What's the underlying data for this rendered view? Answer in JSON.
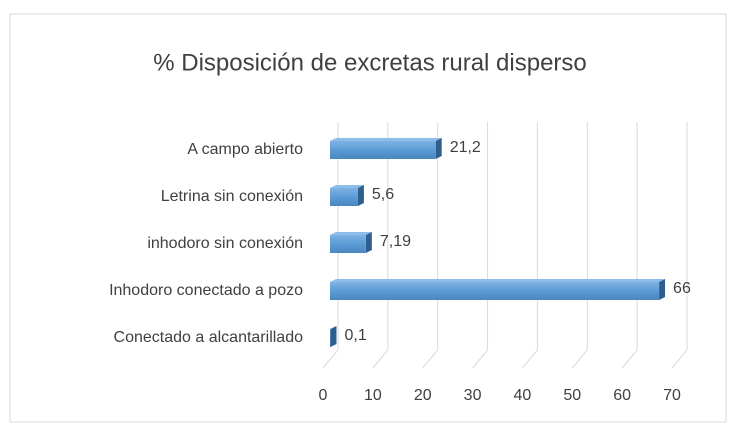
{
  "chart_data": {
    "type": "bar",
    "orientation": "horizontal",
    "three_d": true,
    "title": "% Disposición de excretas rural disperso",
    "categories": [
      "A campo abierto",
      "Letrina sin conexión",
      "inhodoro sin conexión",
      "Inhodoro conectado a pozo",
      "Conectado a alcantarillado"
    ],
    "values": [
      21.2,
      5.6,
      7.19,
      66,
      0.1
    ],
    "value_labels": [
      "21,2",
      "5,6",
      "7,19",
      "66",
      "0,1"
    ],
    "color": "#5b9bd5",
    "xlim": [
      0,
      70
    ],
    "xticks": [
      0,
      10,
      20,
      30,
      40,
      50,
      60,
      70
    ],
    "grid": true
  }
}
